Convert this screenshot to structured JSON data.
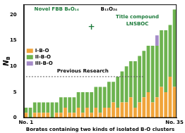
{
  "chart_data": {
    "type": "bar",
    "stacked": true,
    "y_label": "NB",
    "x_label": "Borates containing two kinds of isolated B-O clusters",
    "categories": [
      "No. 1",
      null,
      null,
      null,
      null,
      null,
      null,
      null,
      null,
      null,
      null,
      null,
      null,
      null,
      null,
      null,
      null,
      null,
      null,
      null,
      null,
      null,
      null,
      null,
      null,
      null,
      null,
      null,
      null,
      null,
      null,
      null,
      null,
      null,
      "No. 35"
    ],
    "series": [
      {
        "name": "I-B-O",
        "color": "#f0a43a",
        "values": [
          1,
          0,
          1,
          1,
          1,
          1,
          0,
          1,
          1,
          2,
          1,
          1,
          2,
          1,
          2,
          1,
          2,
          1,
          2,
          2,
          3,
          2,
          3,
          3,
          4,
          2,
          3,
          4,
          5,
          3,
          4,
          6,
          5,
          8,
          6
        ]
      },
      {
        "name": "II-B-O",
        "color": "#6db34f",
        "values": [
          1,
          2,
          2,
          2,
          2,
          2,
          3,
          2,
          3,
          2,
          3,
          3,
          3,
          4,
          3,
          4,
          4,
          5,
          4,
          5,
          4,
          6,
          6,
          7,
          7,
          9,
          9,
          9,
          9,
          11,
          10,
          11,
          12,
          10,
          15
        ]
      },
      {
        "name": "III-B-O",
        "color": "#a58cc8",
        "values": [
          0,
          0,
          0,
          0,
          0,
          0,
          0,
          0,
          0,
          0,
          0,
          0,
          0,
          0,
          0,
          0,
          0,
          0,
          0,
          0,
          0,
          0,
          0,
          0,
          0,
          0,
          0,
          0,
          0,
          0,
          2,
          0,
          0,
          0,
          0
        ]
      }
    ],
    "ylim": [
      0,
      22
    ],
    "yticks": [
      0,
      5,
      10,
      15,
      20
    ],
    "grid": false,
    "legend": "left",
    "annotations": [
      "Novel FBB B₆O₁₄",
      "+",
      "B₁₁O₂₄",
      "Previous Research",
      "Title compound",
      "LNSBOC"
    ]
  }
}
